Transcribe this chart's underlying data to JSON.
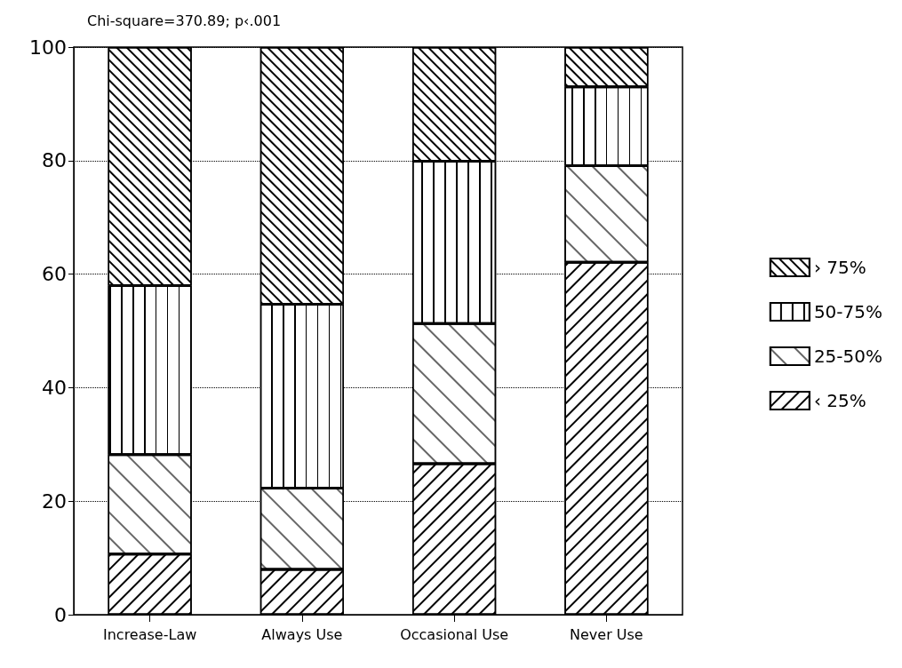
{
  "chart_data": {
    "type": "bar",
    "title": "Chi-square=370.89; p‹.001",
    "categories": [
      "Increase-Law",
      "Always Use",
      "Occasional Use",
      "Never Use"
    ],
    "stacked": true,
    "series": [
      {
        "name": "‹ 25%",
        "color": "#000000",
        "values": [
          10.7,
          8.0,
          26.6,
          62.1
        ]
      },
      {
        "name": "25-50%",
        "color": "#000000",
        "values": [
          17.5,
          14.3,
          24.7,
          17.0
        ]
      },
      {
        "name": "50-75%",
        "color": "#000000",
        "values": [
          29.8,
          32.4,
          28.6,
          13.9
        ]
      },
      {
        "name": "› 75%",
        "color": "#000000",
        "values": [
          42.0,
          45.3,
          20.1,
          7.0
        ]
      }
    ],
    "ylim": [
      0,
      100
    ],
    "yticks": [
      0,
      20,
      40,
      60,
      80,
      100
    ],
    "grid": "y",
    "legend": "right"
  }
}
